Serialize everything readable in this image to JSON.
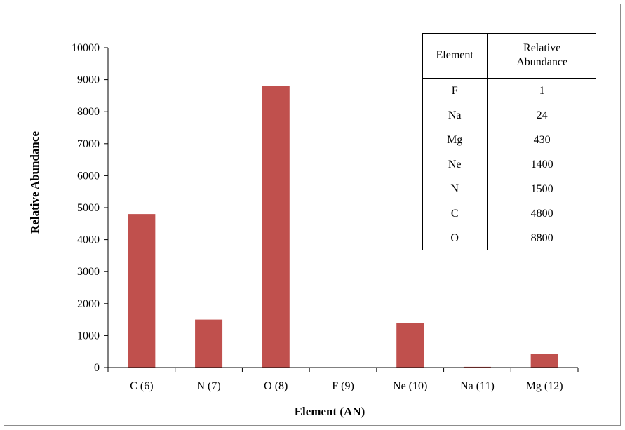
{
  "chart_data": {
    "type": "bar",
    "categories": [
      "C (6)",
      "N (7)",
      "O (8)",
      "F (9)",
      "Ne (10)",
      "Na (11)",
      "Mg (12)"
    ],
    "values": [
      4800,
      1500,
      8800,
      1,
      1400,
      24,
      430
    ],
    "xlabel": "Element (AN)",
    "ylabel": "Relative Abundance",
    "ylim": [
      0,
      10000
    ],
    "yticks": [
      "0",
      "1000",
      "2000",
      "3000",
      "4000",
      "5000",
      "6000",
      "7000",
      "8000",
      "9000",
      "10000"
    ],
    "grid": false,
    "bar_color": "#c0504d",
    "table": {
      "headers": [
        "Element",
        "Relative Abundance"
      ],
      "rows": [
        [
          "F",
          "1"
        ],
        [
          "Na",
          "24"
        ],
        [
          "Mg",
          "430"
        ],
        [
          "Ne",
          "1400"
        ],
        [
          "N",
          "1500"
        ],
        [
          "C",
          "4800"
        ],
        [
          "O",
          "8800"
        ]
      ]
    }
  }
}
